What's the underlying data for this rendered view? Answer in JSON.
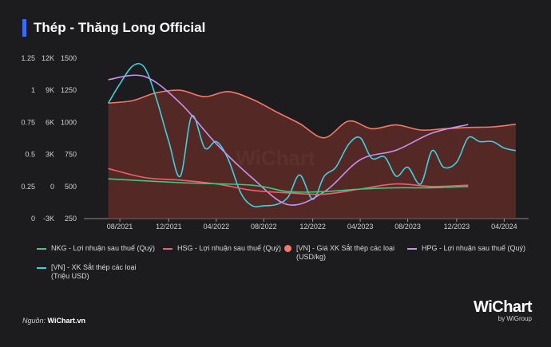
{
  "title": "Thép - Thăng Long Official",
  "watermark": "WiChart",
  "source_label": "Nguồn:",
  "source_value": "WiChart.vn",
  "logo": {
    "brand": "WiChart",
    "sub": "by WiGroup"
  },
  "chart_data": {
    "type": "line",
    "x_ticks": [
      "08/2021",
      "12/2021",
      "04/2022",
      "08/2022",
      "12/2022",
      "04/2023",
      "08/2023",
      "12/2023",
      "04/2024"
    ],
    "axes": {
      "nkg_hsg": {
        "ticks": [
          "1.25",
          "1",
          "0.75",
          "0.5",
          "0.25",
          "0"
        ],
        "ylim": [
          0,
          1.25
        ]
      },
      "hpg": {
        "ticks": [
          "12K",
          "9K",
          "6K",
          "3K",
          "0",
          "-3K"
        ],
        "ylim": [
          -3000,
          12000
        ]
      },
      "price": {
        "ticks": [
          "1500",
          "1250",
          "1000",
          "750",
          "500",
          "250"
        ],
        "ylim": [
          250,
          1500
        ]
      },
      "export": {
        "ticks": [
          "1500",
          "1250",
          "1000",
          "750",
          "500",
          "250"
        ],
        "ylim": [
          250,
          1500
        ]
      }
    },
    "series": [
      {
        "name": "NKG - Lợi nhuận sau thuế (Quý)",
        "color": "#3ec97e",
        "axis": "nkg_hsg",
        "x": [
          2021.5,
          2022.0,
          2022.5,
          2022.75,
          2023.0,
          2023.25,
          2023.5,
          2023.75,
          2024.0
        ],
        "y": [
          0.31,
          0.28,
          0.26,
          0.21,
          0.21,
          0.23,
          0.24,
          0.24,
          0.25
        ]
      },
      {
        "name": "HSG - Lợi nhuận sau thuế (Quý)",
        "color": "#ef5f6f",
        "axis": "nkg_hsg",
        "x": [
          2021.5,
          2021.75,
          2022.0,
          2022.25,
          2022.5,
          2022.75,
          2023.0,
          2023.25,
          2023.5,
          2023.75,
          2024.0
        ],
        "y": [
          0.39,
          0.32,
          0.3,
          0.27,
          0.22,
          0.2,
          0.19,
          0.23,
          0.27,
          0.25,
          0.26
        ]
      },
      {
        "name": "[VN] - Giá XK Sắt thép các loại (USD/kg)",
        "color": "#f07a6a",
        "axis": "price",
        "area": true,
        "x": [
          2021.5,
          2021.67,
          2021.83,
          2022.0,
          2022.17,
          2022.33,
          2022.5,
          2022.67,
          2022.83,
          2023.0,
          2023.17,
          2023.33,
          2023.5,
          2023.67,
          2023.83,
          2024.0,
          2024.17,
          2024.33
        ],
        "y": [
          1150,
          1170,
          1230,
          1250,
          1200,
          1240,
          1180,
          1080,
          990,
          880,
          1010,
          950,
          980,
          940,
          950,
          960,
          965,
          985
        ]
      },
      {
        "name": "HPG - Lợi nhuận sau thuế (Quý)",
        "color": "#c694f0",
        "axis": "hpg",
        "x": [
          2021.5,
          2021.75,
          2022.0,
          2022.25,
          2022.5,
          2022.75,
          2023.0,
          2023.25,
          2023.5,
          2023.75,
          2024.0
        ],
        "y": [
          10000,
          10300,
          7800,
          4000,
          800,
          -1700,
          -500,
          2500,
          3400,
          5000,
          5800
        ]
      },
      {
        "name": "[VN] - XK Sắt thép các loại (Triệu USD)",
        "color": "#3fd0e0",
        "axis": "export",
        "x": [
          2021.5,
          2021.58,
          2021.67,
          2021.75,
          2021.83,
          2021.92,
          2022.0,
          2022.08,
          2022.17,
          2022.25,
          2022.33,
          2022.42,
          2022.5,
          2022.58,
          2022.67,
          2022.75,
          2022.83,
          2022.92,
          2023.0,
          2023.08,
          2023.17,
          2023.25,
          2023.33,
          2023.42,
          2023.5,
          2023.58,
          2023.67,
          2023.75,
          2023.83,
          2023.92,
          2024.0,
          2024.08,
          2024.17,
          2024.25,
          2024.33
        ],
        "y": [
          1150,
          1300,
          1440,
          1430,
          1200,
          850,
          580,
          1050,
          800,
          850,
          720,
          450,
          350,
          350,
          360,
          420,
          590,
          400,
          580,
          650,
          830,
          880,
          720,
          730,
          580,
          650,
          520,
          780,
          650,
          690,
          880,
          850,
          850,
          800,
          780
        ]
      }
    ]
  },
  "legend": [
    {
      "label": "NKG - Lợi nhuận sau thuế (Quý)",
      "color": "#3ec97e",
      "shape": "line"
    },
    {
      "label": "HSG - Lợi nhuận sau thuế (Quý)",
      "color": "#ef5f6f",
      "shape": "line"
    },
    {
      "label": "[VN] - Giá XK Sắt thép các loại (USD/kg)",
      "color": "#f07a6a",
      "shape": "dot"
    },
    {
      "label": "HPG - Lợi nhuận sau thuế (Quý)",
      "color": "#c694f0",
      "shape": "line"
    },
    {
      "label": "[VN] - XK Sắt thép các loại (Triệu USD)",
      "color": "#3fd0e0",
      "shape": "line"
    }
  ]
}
